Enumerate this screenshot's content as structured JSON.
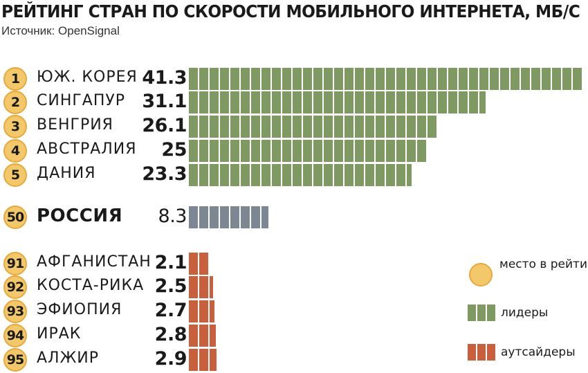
{
  "header": {
    "title": "РЕЙТИНГ СТРАН ПО СКОРОСТИ МОБИЛЬНОГО ИНТЕРНЕТА, МБ/С",
    "source": "Источник: OpenSignal"
  },
  "colors": {
    "leaders": "#7e9962",
    "russia": "#7d8794",
    "outsiders": "#c8603e",
    "rank_badge": "#f2c86a"
  },
  "legend": {
    "rank": "место в рейтинге",
    "leaders": "лидеры",
    "outsiders": "аутсайдеры"
  },
  "chart_data": {
    "type": "bar",
    "orientation": "horizontal",
    "title": "РЕЙТИНГ СТРАН ПО СКОРОСТИ МОБИЛЬНОГО ИНТЕРНЕТА, МБ/С",
    "unit": "МБ/С",
    "rows": [
      {
        "rank": "1",
        "country": "ЮЖ. КОРЕЯ",
        "value": 41.3,
        "label": "41.3",
        "group": "leaders"
      },
      {
        "rank": "2",
        "country": "СИНГАПУР",
        "value": 31.1,
        "label": "31.1",
        "group": "leaders"
      },
      {
        "rank": "3",
        "country": "ВЕНГРИЯ",
        "value": 26.1,
        "label": "26.1",
        "group": "leaders"
      },
      {
        "rank": "4",
        "country": "АВСТРАЛИЯ",
        "value": 25,
        "label": "25",
        "group": "leaders"
      },
      {
        "rank": "5",
        "country": "ДАНИЯ",
        "value": 23.3,
        "label": "23.3",
        "group": "leaders"
      },
      {
        "rank": "50",
        "country": "РОССИЯ",
        "value": 8.3,
        "label": "8.3",
        "group": "russia"
      },
      {
        "rank": "91",
        "country": "АФГАНИСТАН",
        "value": 2.1,
        "label": "2.1",
        "group": "outsiders"
      },
      {
        "rank": "92",
        "country": "КОСТА-РИКА",
        "value": 2.5,
        "label": "2.5",
        "group": "outsiders"
      },
      {
        "rank": "93",
        "country": "ЭФИОПИЯ",
        "value": 2.7,
        "label": "2.7",
        "group": "outsiders"
      },
      {
        "rank": "94",
        "country": "ИРАК",
        "value": 2.8,
        "label": "2.8",
        "group": "outsiders"
      },
      {
        "rank": "95",
        "country": "АЛЖИР",
        "value": 2.9,
        "label": "2.9",
        "group": "outsiders"
      }
    ],
    "xlim": [
      0,
      41.3
    ]
  }
}
